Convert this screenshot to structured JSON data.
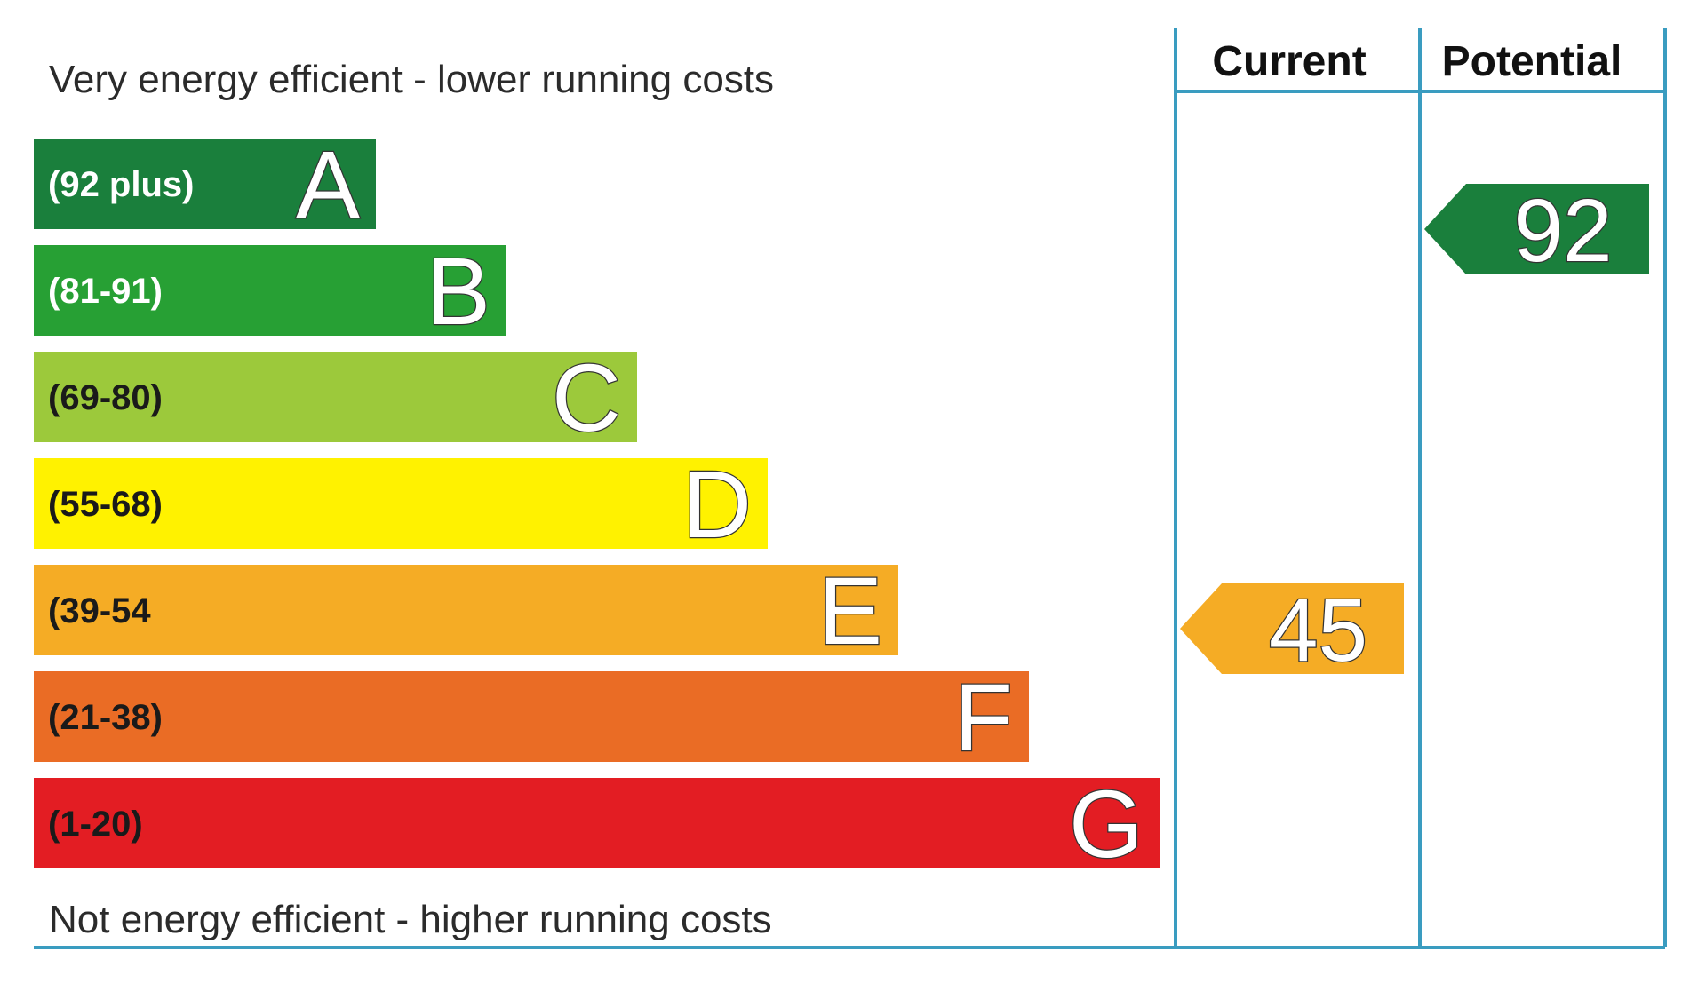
{
  "chart_data": {
    "type": "bar",
    "top_caption": "Very energy efficient - lower running costs",
    "bottom_caption": "Not energy efficient - higher running costs",
    "columns": [
      "Current",
      "Potential"
    ],
    "bands": [
      {
        "letter": "A",
        "range": "(92 plus)",
        "color": "#1a7f3c",
        "text_color": "#ffffff"
      },
      {
        "letter": "B",
        "range": "(81-91)",
        "color": "#27a034",
        "text_color": "#ffffff"
      },
      {
        "letter": "C",
        "range": "(69-80)",
        "color": "#9cc93b",
        "text_color": "#1a1a1a"
      },
      {
        "letter": "D",
        "range": "(55-68)",
        "color": "#fff200",
        "text_color": "#1a1a1a"
      },
      {
        "letter": "E",
        "range": "(39-54",
        "color": "#f5ac25",
        "text_color": "#1a1a1a"
      },
      {
        "letter": "F",
        "range": "(21-38)",
        "color": "#ea6c25",
        "text_color": "#1a1a1a"
      },
      {
        "letter": "G",
        "range": "(1-20)",
        "color": "#e31d23",
        "text_color": "#1a1a1a"
      }
    ],
    "ratings": [
      {
        "column": "Current",
        "value": 45,
        "band": "E",
        "color": "#f5ac25"
      },
      {
        "column": "Potential",
        "value": 92,
        "band": "A",
        "color": "#1a7f3c"
      }
    ],
    "grid_color": "#3a9cc0"
  }
}
